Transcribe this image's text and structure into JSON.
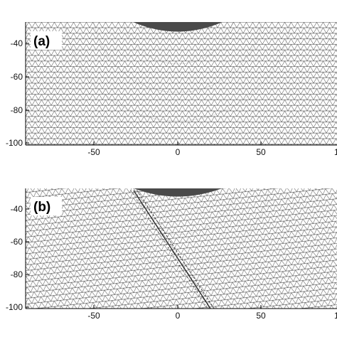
{
  "panels": [
    {
      "id": "a",
      "label": "(a)",
      "y_ticks": [
        "-40",
        "-60",
        "-80",
        "-100"
      ],
      "x_ticks": [
        "-50",
        "0",
        "50",
        "1"
      ],
      "feature": "mesh with dark semicircular indenter at top centre"
    },
    {
      "id": "b",
      "label": "(b)",
      "y_ticks": [
        "-40",
        "-60",
        "-80",
        "-100"
      ],
      "x_ticks": [
        "-50",
        "0",
        "50",
        "1"
      ],
      "feature": "mesh with dark semicircular indenter at top centre and a diagonal crack band"
    }
  ],
  "colors": {
    "mesh_line": "#1a1a1a",
    "indenter": "#4a4a4a",
    "axis": "#000000",
    "background": "#ffffff"
  }
}
